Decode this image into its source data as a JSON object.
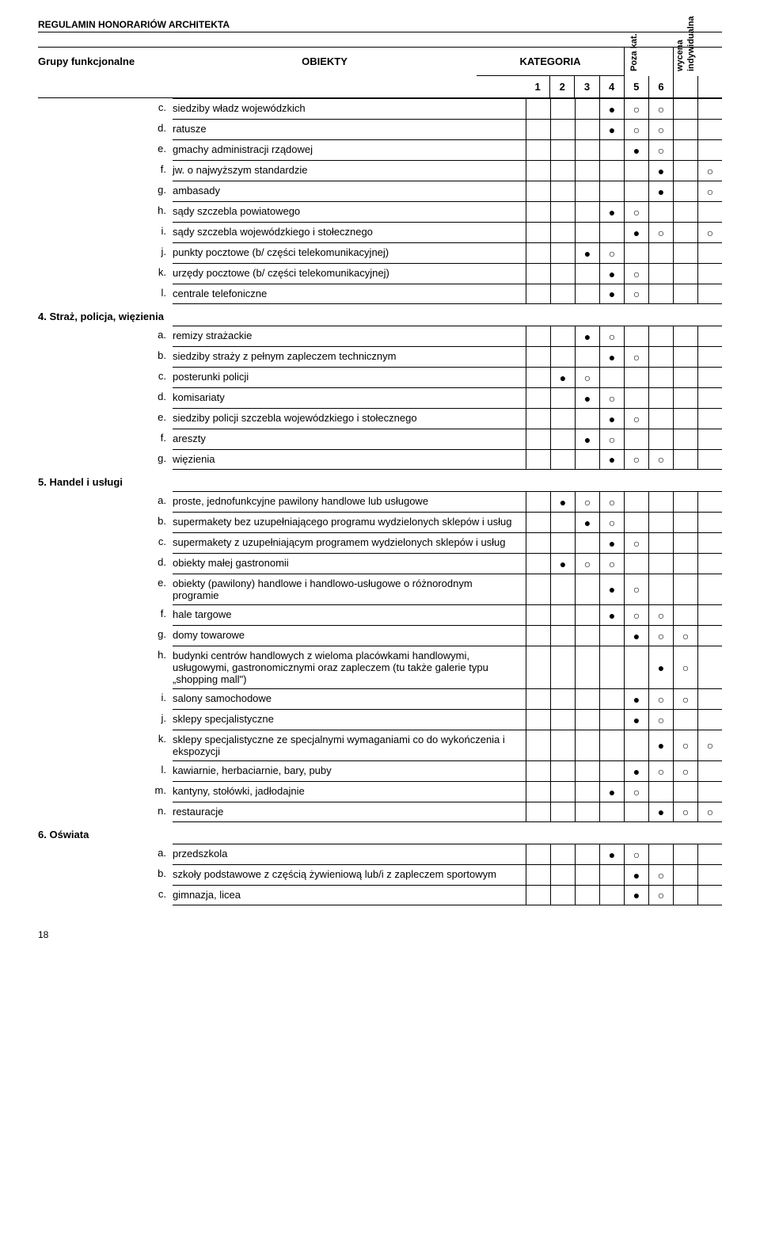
{
  "doc_header": "REGULAMIN HONORARIÓW  ARCHITEKTA",
  "page_number": "18",
  "header": {
    "group_label": "Grupy funkcjonalne",
    "objects_label": "OBIEKTY",
    "category_label": "KATEGORIA",
    "extra_a": "Poza kat.",
    "extra_b_line1": "wycena",
    "extra_b_line2": "indywidualna",
    "cat_nums": [
      "1",
      "2",
      "3",
      "4",
      "5",
      "6"
    ]
  },
  "sections": [
    {
      "title": "",
      "rows": [
        {
          "l": "c.",
          "t": "siedziby władz wojewódzkich",
          "m": [
            "",
            "",
            "",
            "f",
            "o",
            "o",
            "",
            ""
          ]
        },
        {
          "l": "d.",
          "t": "ratusze",
          "m": [
            "",
            "",
            "",
            "f",
            "o",
            "o",
            "",
            ""
          ]
        },
        {
          "l": "e.",
          "t": "gmachy administracji rządowej",
          "m": [
            "",
            "",
            "",
            "",
            "f",
            "o",
            "",
            ""
          ]
        },
        {
          "l": "f.",
          "t": "jw. o najwyższym standardzie",
          "m": [
            "",
            "",
            "",
            "",
            "",
            "f",
            "",
            "o"
          ]
        },
        {
          "l": "g.",
          "t": "ambasady",
          "m": [
            "",
            "",
            "",
            "",
            "",
            "f",
            "",
            "o"
          ]
        },
        {
          "l": "h.",
          "t": "sądy szczebla powiatowego",
          "m": [
            "",
            "",
            "",
            "f",
            "o",
            "",
            "",
            ""
          ]
        },
        {
          "l": "i.",
          "t": "sądy szczebla wojewódzkiego i stołecznego",
          "m": [
            "",
            "",
            "",
            "",
            "f",
            "o",
            "",
            "o"
          ]
        },
        {
          "l": "j.",
          "t": "punkty pocztowe (b/ części telekomunikacyjnej)",
          "m": [
            "",
            "",
            "f",
            "o",
            "",
            "",
            "",
            ""
          ]
        },
        {
          "l": "k.",
          "t": "urzędy pocztowe (b/ części telekomunikacyjnej)",
          "m": [
            "",
            "",
            "",
            "f",
            "o",
            "",
            "",
            ""
          ]
        },
        {
          "l": "l.",
          "t": "centrale telefoniczne",
          "m": [
            "",
            "",
            "",
            "f",
            "o",
            "",
            "",
            ""
          ]
        }
      ]
    },
    {
      "title": "4. Straż, policja, więzienia",
      "rows": [
        {
          "l": "a.",
          "t": "remizy strażackie",
          "m": [
            "",
            "",
            "f",
            "o",
            "",
            "",
            "",
            ""
          ]
        },
        {
          "l": "b.",
          "t": "siedziby straży z pełnym zapleczem technicznym",
          "m": [
            "",
            "",
            "",
            "f",
            "o",
            "",
            "",
            ""
          ]
        },
        {
          "l": "c.",
          "t": "posterunki policji",
          "m": [
            "",
            "f",
            "o",
            "",
            "",
            "",
            "",
            ""
          ]
        },
        {
          "l": "d.",
          "t": "komisariaty",
          "m": [
            "",
            "",
            "f",
            "o",
            "",
            "",
            "",
            ""
          ]
        },
        {
          "l": "e.",
          "t": "siedziby policji szczebla wojewódzkiego i stołecznego",
          "m": [
            "",
            "",
            "",
            "f",
            "o",
            "",
            "",
            ""
          ]
        },
        {
          "l": "f.",
          "t": "areszty",
          "m": [
            "",
            "",
            "f",
            "o",
            "",
            "",
            "",
            ""
          ]
        },
        {
          "l": "g.",
          "t": "więzienia",
          "m": [
            "",
            "",
            "",
            "f",
            "o",
            "o",
            "",
            ""
          ]
        }
      ]
    },
    {
      "title": "5. Handel i usługi",
      "rows": [
        {
          "l": "a.",
          "t": "proste, jednofunkcyjne pawilony handlowe lub usługowe",
          "m": [
            "",
            "f",
            "o",
            "o",
            "",
            "",
            "",
            ""
          ]
        },
        {
          "l": "b.",
          "t": "supermakety bez uzupełniającego programu wydzielonych sklepów i usług",
          "m": [
            "",
            "",
            "f",
            "o",
            "",
            "",
            "",
            ""
          ]
        },
        {
          "l": "c.",
          "t": "supermakety z uzupełniającym programem wydzielonych sklepów i usług",
          "m": [
            "",
            "",
            "",
            "f",
            "o",
            "",
            "",
            ""
          ]
        },
        {
          "l": "d.",
          "t": "obiekty małej gastronomii",
          "m": [
            "",
            "f",
            "o",
            "o",
            "",
            "",
            "",
            ""
          ]
        },
        {
          "l": "e.",
          "t": "obiekty (pawilony) handlowe i handlowo-usługowe o różnorodnym programie",
          "m": [
            "",
            "",
            "",
            "f",
            "o",
            "",
            "",
            ""
          ]
        },
        {
          "l": "f.",
          "t": "hale targowe",
          "m": [
            "",
            "",
            "",
            "f",
            "o",
            "o",
            "",
            ""
          ]
        },
        {
          "l": "g.",
          "t": "domy towarowe",
          "m": [
            "",
            "",
            "",
            "",
            "f",
            "o",
            "o",
            ""
          ]
        },
        {
          "l": "h.",
          "t": "budynki centrów handlowych z wieloma placówkami handlowymi, usługowymi, gastronomicznymi oraz zapleczem (tu także galerie typu „shopping mall\")",
          "m": [
            "",
            "",
            "",
            "",
            "",
            "f",
            "o",
            ""
          ]
        },
        {
          "l": "i.",
          "t": "salony samochodowe",
          "m": [
            "",
            "",
            "",
            "",
            "f",
            "o",
            "o",
            ""
          ]
        },
        {
          "l": "j.",
          "t": "sklepy specjalistyczne",
          "m": [
            "",
            "",
            "",
            "",
            "f",
            "o",
            "",
            ""
          ]
        },
        {
          "l": "k.",
          "t": "sklepy specjalistyczne ze specjalnymi wymaganiami co do wykończenia i ekspozycji",
          "m": [
            "",
            "",
            "",
            "",
            "",
            "f",
            "o",
            "o"
          ]
        },
        {
          "l": "l.",
          "t": "kawiarnie, herbaciarnie, bary, puby",
          "m": [
            "",
            "",
            "",
            "",
            "f",
            "o",
            "o",
            ""
          ]
        },
        {
          "l": "m.",
          "t": "kantyny, stołówki, jadłodajnie",
          "m": [
            "",
            "",
            "",
            "f",
            "o",
            "",
            "",
            ""
          ]
        },
        {
          "l": "n.",
          "t": "restauracje",
          "m": [
            "",
            "",
            "",
            "",
            "",
            "f",
            "o",
            "o"
          ]
        }
      ]
    },
    {
      "title": "6. Oświata",
      "rows": [
        {
          "l": "a.",
          "t": "przedszkola",
          "m": [
            "",
            "",
            "",
            "f",
            "o",
            "",
            "",
            ""
          ]
        },
        {
          "l": "b.",
          "t": "szkoły podstawowe z częścią żywieniową lub/i z zapleczem sportowym",
          "m": [
            "",
            "",
            "",
            "",
            "f",
            "o",
            "",
            ""
          ]
        },
        {
          "l": "c.",
          "t": "gimnazja, licea",
          "m": [
            "",
            "",
            "",
            "",
            "f",
            "o",
            "",
            ""
          ]
        }
      ]
    }
  ]
}
